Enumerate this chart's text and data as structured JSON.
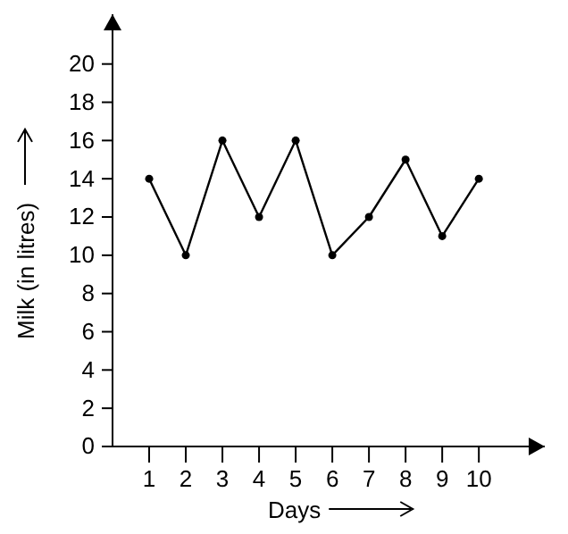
{
  "chart_data": {
    "type": "line",
    "xlabel": "Days",
    "ylabel": "Milk (in litres)",
    "x": [
      1,
      2,
      3,
      4,
      5,
      6,
      7,
      8,
      9,
      10
    ],
    "series": [
      {
        "color": "#000000",
        "values": [
          14,
          10,
          16,
          12,
          16,
          10,
          12,
          15,
          11,
          14
        ]
      }
    ],
    "xlim": [
      0,
      11.8
    ],
    "ylim": [
      0,
      22.6
    ],
    "xticks": [
      1,
      2,
      3,
      4,
      5,
      6,
      7,
      8,
      9,
      10
    ],
    "yticks": [
      0,
      2,
      4,
      6,
      8,
      10,
      12,
      14,
      16,
      18,
      20
    ],
    "marker": "circle",
    "line_style": "solid",
    "grid": false
  }
}
